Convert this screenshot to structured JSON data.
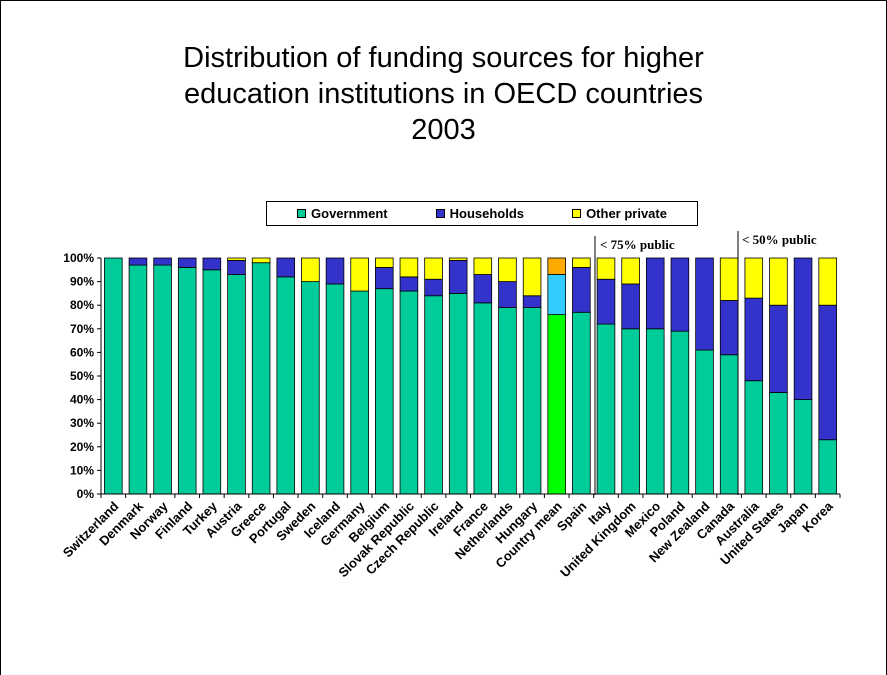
{
  "title_lines": [
    "Distribution of funding sources for higher",
    "education institutions in OECD countries",
    "2003"
  ],
  "legend": [
    {
      "label": "Government",
      "color": "#00CC99"
    },
    {
      "label": "Households",
      "color": "#3333CC"
    },
    {
      "label": "Other private",
      "color": "#FFFF00"
    }
  ],
  "annotations": {
    "public_75": "< 75% public",
    "public_50": "< 50% public"
  },
  "chart_data": {
    "type": "bar",
    "stacked": true,
    "title": "Distribution of funding sources for higher education institutions in OECD countries 2003",
    "ylim": [
      0,
      100
    ],
    "yticks": [
      "0%",
      "10%",
      "20%",
      "30%",
      "40%",
      "50%",
      "60%",
      "70%",
      "80%",
      "90%",
      "100%"
    ],
    "categories": [
      "Switzerland",
      "Denmark",
      "Norway",
      "Finland",
      "Turkey",
      "Austria",
      "Greece",
      "Portugal",
      "Sweden",
      "Iceland",
      "Germany",
      "Belgium",
      "Slovak Republic",
      "Czech Republic",
      "Ireland",
      "France",
      "Netherlands",
      "Hungary",
      "Country mean",
      "Spain",
      "Italy",
      "United Kingdom",
      "Mexico",
      "Poland",
      "New Zealand",
      "Canada",
      "Australia",
      "United States",
      "Japan",
      "Korea"
    ],
    "series": [
      {
        "name": "Government",
        "color": "#00CC99",
        "values": [
          100,
          97,
          97,
          96,
          95,
          93,
          98,
          92,
          90,
          89,
          86,
          87,
          86,
          84,
          85,
          81,
          79,
          79,
          76,
          77,
          72,
          70,
          70,
          69,
          61,
          59,
          48,
          43,
          40,
          23
        ]
      },
      {
        "name": "Households",
        "color": "#3333CC",
        "values": [
          0,
          3,
          3,
          4,
          5,
          6,
          0,
          8,
          0,
          11,
          0,
          9,
          6,
          7,
          14,
          12,
          11,
          5,
          17,
          19,
          19,
          19,
          30,
          31,
          39,
          23,
          35,
          37,
          60,
          57
        ]
      },
      {
        "name": "Other private",
        "color": "#FFFF00",
        "values": [
          0,
          0,
          0,
          0,
          0,
          1,
          2,
          0,
          10,
          0,
          14,
          4,
          8,
          9,
          1,
          7,
          10,
          16,
          7,
          4,
          9,
          11,
          0,
          0,
          0,
          18,
          17,
          20,
          0,
          20
        ]
      }
    ],
    "highlight_category": "Country mean",
    "highlight_colors": [
      "#00FF00",
      "#33CCFF",
      "#FFAA00"
    ],
    "grid": false,
    "legend_position": "top"
  }
}
